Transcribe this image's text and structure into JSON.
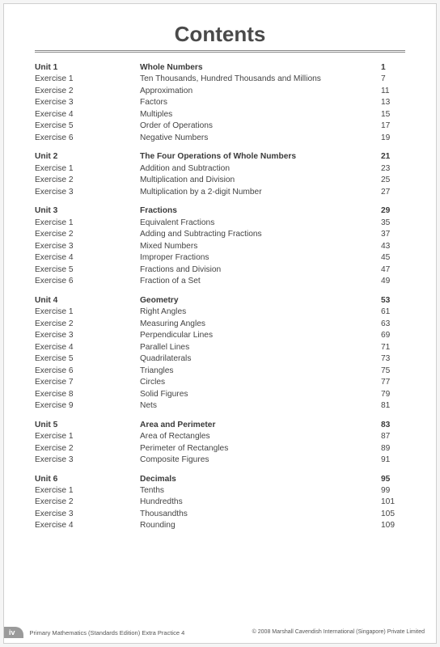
{
  "title": "Contents",
  "page_number": "iv",
  "book_title": "Primary Mathematics (Standards Edition) Extra Practice 4",
  "copyright": "© 2008 Marshall Cavendish International (Singapore) Private Limited",
  "units": [
    {
      "unit_label": "Unit 1",
      "unit_title": "Whole Numbers",
      "unit_page": "1",
      "exercises": [
        {
          "label": "Exercise 1",
          "title": "Ten Thousands, Hundred Thousands and Millions",
          "page": "7"
        },
        {
          "label": "Exercise 2",
          "title": "Approximation",
          "page": "11"
        },
        {
          "label": "Exercise 3",
          "title": "Factors",
          "page": "13"
        },
        {
          "label": "Exercise 4",
          "title": "Multiples",
          "page": "15"
        },
        {
          "label": "Exercise 5",
          "title": "Order of Operations",
          "page": "17"
        },
        {
          "label": "Exercise 6",
          "title": "Negative Numbers",
          "page": "19"
        }
      ]
    },
    {
      "unit_label": "Unit 2",
      "unit_title": "The Four Operations of Whole Numbers",
      "unit_page": "21",
      "exercises": [
        {
          "label": "Exercise 1",
          "title": "Addition and Subtraction",
          "page": "23"
        },
        {
          "label": "Exercise 2",
          "title": "Multiplication and Division",
          "page": "25"
        },
        {
          "label": "Exercise 3",
          "title": "Multiplication by a 2-digit Number",
          "page": "27"
        }
      ]
    },
    {
      "unit_label": "Unit 3",
      "unit_title": "Fractions",
      "unit_page": "29",
      "exercises": [
        {
          "label": "Exercise 1",
          "title": "Equivalent Fractions",
          "page": "35"
        },
        {
          "label": "Exercise 2",
          "title": "Adding and Subtracting Fractions",
          "page": "37"
        },
        {
          "label": "Exercise 3",
          "title": "Mixed Numbers",
          "page": "43"
        },
        {
          "label": "Exercise 4",
          "title": "Improper Fractions",
          "page": "45"
        },
        {
          "label": "Exercise 5",
          "title": "Fractions and Division",
          "page": "47"
        },
        {
          "label": "Exercise 6",
          "title": "Fraction of a Set",
          "page": "49"
        }
      ]
    },
    {
      "unit_label": "Unit 4",
      "unit_title": "Geometry",
      "unit_page": "53",
      "exercises": [
        {
          "label": "Exercise 1",
          "title": "Right Angles",
          "page": "61"
        },
        {
          "label": "Exercise 2",
          "title": "Measuring Angles",
          "page": "63"
        },
        {
          "label": "Exercise 3",
          "title": "Perpendicular Lines",
          "page": "69"
        },
        {
          "label": "Exercise 4",
          "title": "Parallel Lines",
          "page": "71"
        },
        {
          "label": "Exercise 5",
          "title": "Quadrilaterals",
          "page": "73"
        },
        {
          "label": "Exercise 6",
          "title": "Triangles",
          "page": "75"
        },
        {
          "label": "Exercise 7",
          "title": "Circles",
          "page": "77"
        },
        {
          "label": "Exercise 8",
          "title": "Solid Figures",
          "page": "79"
        },
        {
          "label": "Exercise 9",
          "title": "Nets",
          "page": "81"
        }
      ]
    },
    {
      "unit_label": "Unit 5",
      "unit_title": "Area and Perimeter",
      "unit_page": "83",
      "exercises": [
        {
          "label": "Exercise 1",
          "title": "Area of Rectangles",
          "page": "87"
        },
        {
          "label": "Exercise 2",
          "title": "Perimeter of Rectangles",
          "page": "89"
        },
        {
          "label": "Exercise 3",
          "title": "Composite Figures",
          "page": "91"
        }
      ]
    },
    {
      "unit_label": "Unit 6",
      "unit_title": "Decimals",
      "unit_page": "95",
      "exercises": [
        {
          "label": "Exercise 1",
          "title": "Tenths",
          "page": "99"
        },
        {
          "label": "Exercise 2",
          "title": "Hundredths",
          "page": "101"
        },
        {
          "label": "Exercise 3",
          "title": "Thousandths",
          "page": "105"
        },
        {
          "label": "Exercise 4",
          "title": "Rounding",
          "page": "109"
        }
      ]
    }
  ]
}
